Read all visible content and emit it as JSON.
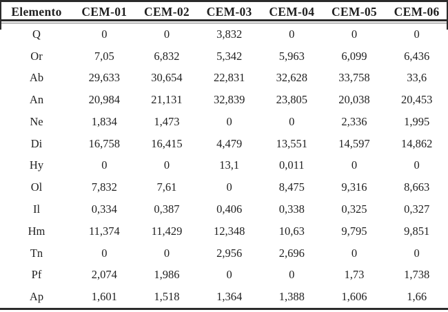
{
  "table": {
    "columns": [
      "Elemento",
      "CEM-01",
      "CEM-02",
      "CEM-03",
      "CEM-04",
      "CEM-05",
      "CEM-06"
    ],
    "rows": [
      {
        "element": "Q",
        "values": [
          "0",
          "0",
          "3,832",
          "0",
          "0",
          "0"
        ]
      },
      {
        "element": "Or",
        "values": [
          "7,05",
          "6,832",
          "5,342",
          "5,963",
          "6,099",
          "6,436"
        ]
      },
      {
        "element": "Ab",
        "values": [
          "29,633",
          "30,654",
          "22,831",
          "32,628",
          "33,758",
          "33,6"
        ]
      },
      {
        "element": "An",
        "values": [
          "20,984",
          "21,131",
          "32,839",
          "23,805",
          "20,038",
          "20,453"
        ]
      },
      {
        "element": "Ne",
        "values": [
          "1,834",
          "1,473",
          "0",
          "0",
          "2,336",
          "1,995"
        ]
      },
      {
        "element": "Di",
        "values": [
          "16,758",
          "16,415",
          "4,479",
          "13,551",
          "14,597",
          "14,862"
        ]
      },
      {
        "element": "Hy",
        "values": [
          "0",
          "0",
          "13,1",
          "0,011",
          "0",
          "0"
        ]
      },
      {
        "element": "Ol",
        "values": [
          "7,832",
          "7,61",
          "0",
          "8,475",
          "9,316",
          "8,663"
        ]
      },
      {
        "element": "Il",
        "values": [
          "0,334",
          "0,387",
          "0,406",
          "0,338",
          "0,325",
          "0,327"
        ]
      },
      {
        "element": "Hm",
        "values": [
          "11,374",
          "11,429",
          "12,348",
          "10,63",
          "9,795",
          "9,851"
        ]
      },
      {
        "element": "Tn",
        "values": [
          "0",
          "0",
          "2,956",
          "2,696",
          "0",
          "0"
        ]
      },
      {
        "element": "Pf",
        "values": [
          "2,074",
          "1,986",
          "0",
          "0",
          "1,73",
          "1,738"
        ]
      },
      {
        "element": "Ap",
        "values": [
          "1,601",
          "1,518",
          "1,364",
          "1,388",
          "1,606",
          "1,66"
        ]
      }
    ]
  },
  "colors": {
    "background": "#ffffff",
    "text": "#1f1f1f",
    "rule_dark": "#2b2b2b",
    "rule_thin": "#777777"
  }
}
